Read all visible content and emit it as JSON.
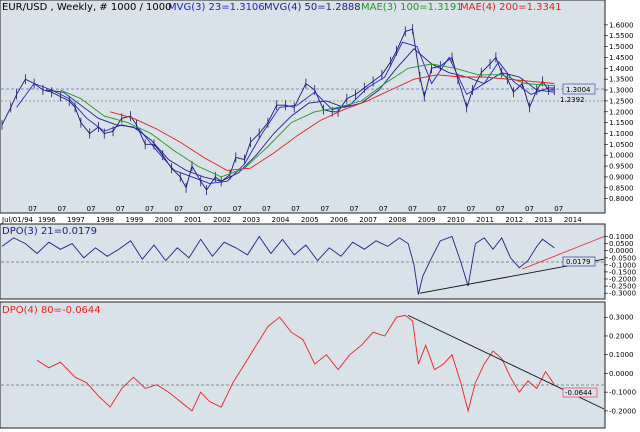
{
  "colors": {
    "page_bg": "#ffffff",
    "panel_bg": "#d9e1e9",
    "price": "#1a1a6e",
    "mvg3": "#2222cc",
    "mvg4": "#222288",
    "mae3": "#229922",
    "mae4": "#dd2222",
    "dpo3": "#22228a",
    "dpo4": "#ee2222",
    "trendline_black": "#111111",
    "trendline_red": "#ee3333",
    "level": "#333399"
  },
  "header": {
    "symbol": "EUR/USD , Weekly, # 1000 / 1000",
    "mvg3": "MVG(3) 23=1.3106",
    "mvg4": "MVG(4) 50=1.2888",
    "mae3": "MAE(3) 100=1.3191",
    "mae4": "MAE(4) 200=1.3341"
  },
  "price_marker": "1.3004",
  "level_label": "1.2392",
  "dpo3_title": "DPO(3) 21=0.0179",
  "dpo3_marker": "0.0179",
  "dpo4_title": "DPO(4) 80=-0.0644",
  "dpo4_marker": "-0.0644",
  "x_axis": {
    "start_label": "Jul/01/94",
    "month_label": "07",
    "years": [
      "1996",
      "1997",
      "1998",
      "1999",
      "2000",
      "2001",
      "2002",
      "2003",
      "2004",
      "2005",
      "2006",
      "2007",
      "2008",
      "2009",
      "2010",
      "2011",
      "2012",
      "2013",
      "2014"
    ]
  },
  "chart_data": [
    {
      "type": "line",
      "panel": "price",
      "x_range": [
        1994.5,
        2015.1
      ],
      "ylim": [
        0.78,
        1.65
      ],
      "y_ticks": [
        "1.6000",
        "1.5500",
        "1.5000",
        "1.4500",
        "1.4000",
        "1.3500",
        "1.3000",
        "1.2500",
        "1.2000",
        "1.1500",
        "1.1000",
        "1.0500",
        "1.0000",
        "0.9500",
        "0.9000",
        "0.8500",
        "0.8000"
      ],
      "series": [
        {
          "name": "EUR/USD",
          "style": "ohlc",
          "x": [
            1994.5,
            1994.8,
            1995.0,
            1995.3,
            1995.6,
            1995.9,
            1996.2,
            1996.5,
            1996.8,
            1997.0,
            1997.2,
            1997.5,
            1997.8,
            1998.0,
            1998.3,
            1998.6,
            1998.9,
            1999.1,
            1999.4,
            1999.7,
            2000.0,
            2000.3,
            2000.6,
            2000.8,
            2001.0,
            2001.3,
            2001.5,
            2001.8,
            2002.0,
            2002.3,
            2002.5,
            2002.8,
            2003.0,
            2003.3,
            2003.6,
            2003.9,
            2004.2,
            2004.5,
            2004.9,
            2005.2,
            2005.5,
            2005.8,
            2006.0,
            2006.3,
            2006.6,
            2006.9,
            2007.2,
            2007.5,
            2007.8,
            2008.0,
            2008.3,
            2008.55,
            2008.8,
            2008.95,
            2009.2,
            2009.5,
            2009.9,
            2010.1,
            2010.4,
            2010.6,
            2010.9,
            2011.2,
            2011.4,
            2011.6,
            2011.8,
            2012.0,
            2012.3,
            2012.55,
            2012.8,
            2013.0,
            2013.2,
            2013.4
          ],
          "y": [
            1.14,
            1.22,
            1.28,
            1.35,
            1.33,
            1.3,
            1.29,
            1.27,
            1.25,
            1.22,
            1.15,
            1.1,
            1.13,
            1.1,
            1.11,
            1.17,
            1.18,
            1.14,
            1.05,
            1.05,
            1.0,
            0.94,
            0.9,
            0.85,
            0.95,
            0.88,
            0.84,
            0.9,
            0.88,
            0.91,
            0.99,
            0.98,
            1.06,
            1.1,
            1.15,
            1.23,
            1.23,
            1.22,
            1.33,
            1.3,
            1.21,
            1.2,
            1.2,
            1.26,
            1.28,
            1.31,
            1.34,
            1.37,
            1.43,
            1.48,
            1.57,
            1.58,
            1.36,
            1.27,
            1.4,
            1.41,
            1.45,
            1.35,
            1.22,
            1.3,
            1.38,
            1.42,
            1.45,
            1.38,
            1.35,
            1.29,
            1.33,
            1.22,
            1.3,
            1.34,
            1.3,
            1.3
          ]
        },
        {
          "name": "MVG(3) 23",
          "x": [
            1995.0,
            1995.6,
            1996.2,
            1996.8,
            1997.4,
            1998.0,
            1998.6,
            1999.2,
            1999.8,
            2000.4,
            2001.0,
            2001.6,
            2002.2,
            2002.8,
            2003.4,
            2004.0,
            2004.6,
            2005.2,
            2005.8,
            2006.4,
            2007.0,
            2007.6,
            2008.2,
            2008.7,
            2009.2,
            2009.8,
            2010.4,
            2011.0,
            2011.5,
            2012.0,
            2012.6,
            2013.2,
            2013.4
          ],
          "y": [
            1.22,
            1.33,
            1.3,
            1.26,
            1.17,
            1.11,
            1.14,
            1.12,
            1.02,
            0.93,
            0.9,
            0.87,
            0.88,
            0.96,
            1.1,
            1.22,
            1.23,
            1.29,
            1.21,
            1.23,
            1.31,
            1.36,
            1.52,
            1.5,
            1.33,
            1.45,
            1.28,
            1.33,
            1.43,
            1.34,
            1.28,
            1.31,
            1.31
          ]
        },
        {
          "name": "MVG(4) 50",
          "x": [
            1996.0,
            1996.6,
            1997.2,
            1997.8,
            1998.4,
            1999.0,
            1999.6,
            2000.2,
            2000.8,
            2001.4,
            2002.0,
            2002.6,
            2003.2,
            2003.8,
            2004.4,
            2005.0,
            2005.6,
            2006.2,
            2006.8,
            2007.4,
            2008.0,
            2008.6,
            2009.2,
            2009.8,
            2010.4,
            2011.0,
            2011.6,
            2012.2,
            2012.8,
            2013.4
          ],
          "y": [
            1.3,
            1.29,
            1.23,
            1.17,
            1.14,
            1.13,
            1.07,
            0.98,
            0.93,
            0.9,
            0.88,
            0.92,
            1.0,
            1.1,
            1.18,
            1.24,
            1.25,
            1.22,
            1.24,
            1.3,
            1.4,
            1.49,
            1.42,
            1.38,
            1.36,
            1.33,
            1.38,
            1.36,
            1.3,
            1.29
          ]
        },
        {
          "name": "MAE(3) 100",
          "x": [
            1996.5,
            1997.2,
            1998.0,
            1998.8,
            1999.6,
            2000.4,
            2001.2,
            2002.0,
            2002.8,
            2003.6,
            2004.4,
            2005.2,
            2006.0,
            2006.8,
            2007.6,
            2008.4,
            2009.2,
            2010.0,
            2010.8,
            2011.6,
            2012.4,
            2013.4
          ],
          "y": [
            1.3,
            1.26,
            1.18,
            1.15,
            1.1,
            1.02,
            0.95,
            0.9,
            0.94,
            1.04,
            1.15,
            1.2,
            1.22,
            1.25,
            1.33,
            1.4,
            1.42,
            1.4,
            1.37,
            1.37,
            1.33,
            1.32
          ]
        },
        {
          "name": "MAE(4) 200",
          "x": [
            1998.2,
            1999.0,
            1999.8,
            2000.6,
            2001.4,
            2002.2,
            2003.0,
            2003.8,
            2004.6,
            2005.4,
            2006.2,
            2007.0,
            2007.8,
            2008.6,
            2009.4,
            2010.2,
            2011.0,
            2011.8,
            2012.6,
            2013.4
          ],
          "y": [
            1.2,
            1.17,
            1.12,
            1.06,
            0.99,
            0.93,
            0.94,
            1.01,
            1.09,
            1.16,
            1.21,
            1.25,
            1.3,
            1.35,
            1.37,
            1.36,
            1.36,
            1.35,
            1.34,
            1.33
          ]
        }
      ]
    },
    {
      "type": "line",
      "panel": "DPO(3)",
      "title": "DPO(3) 21=0.0179",
      "x_range": [
        1994.5,
        2015.1
      ],
      "ylim": [
        -0.32,
        0.16
      ],
      "y_ticks": [
        "0.1000",
        "0.0500",
        "0.0000",
        "-0.0500",
        "-0.1000",
        "-0.1500",
        "-0.2000",
        "-0.2500",
        "-0.3000"
      ],
      "series": [
        {
          "name": "DPO(3) 21",
          "x": [
            1994.5,
            1994.9,
            1995.3,
            1995.7,
            1996.1,
            1996.5,
            1996.9,
            1997.3,
            1997.7,
            1998.1,
            1998.5,
            1998.9,
            1999.3,
            1999.7,
            2000.1,
            2000.5,
            2000.9,
            2001.3,
            2001.7,
            2002.1,
            2002.5,
            2002.9,
            2003.3,
            2003.7,
            2004.1,
            2004.5,
            2004.9,
            2005.3,
            2005.7,
            2006.1,
            2006.5,
            2006.9,
            2007.3,
            2007.7,
            2008.1,
            2008.4,
            2008.6,
            2008.75,
            2008.9,
            2009.2,
            2009.5,
            2009.9,
            2010.2,
            2010.45,
            2010.7,
            2011.0,
            2011.3,
            2011.6,
            2011.9,
            2012.2,
            2012.5,
            2012.8,
            2013.0,
            2013.2,
            2013.4
          ],
          "y": [
            0.03,
            0.09,
            0.05,
            -0.02,
            0.06,
            0.01,
            0.05,
            -0.05,
            0.02,
            -0.04,
            0.01,
            0.07,
            -0.06,
            0.04,
            -0.07,
            0.02,
            -0.05,
            0.08,
            -0.04,
            0.06,
            0.02,
            -0.03,
            0.1,
            -0.02,
            0.08,
            -0.03,
            0.04,
            -0.07,
            0.02,
            -0.04,
            0.06,
            0.01,
            0.07,
            0.03,
            0.09,
            0.05,
            -0.1,
            -0.31,
            -0.18,
            -0.05,
            0.07,
            0.1,
            -0.08,
            -0.25,
            0.05,
            0.09,
            0.01,
            0.09,
            -0.05,
            -0.12,
            -0.07,
            0.03,
            0.08,
            0.05,
            0.02
          ]
        },
        {
          "name": "trend support black",
          "x": [
            2008.8,
            2015.1
          ],
          "y": [
            -0.3,
            -0.06
          ]
        },
        {
          "name": "trend support red",
          "x": [
            2012.3,
            2015.1
          ],
          "y": [
            -0.13,
            0.1
          ]
        }
      ]
    },
    {
      "type": "line",
      "panel": "DPO(4)",
      "title": "DPO(4) 80=-0.0644",
      "x_range": [
        1994.5,
        2015.1
      ],
      "ylim": [
        -0.27,
        0.36
      ],
      "y_ticks": [
        "0.3000",
        "0.2000",
        "0.1000",
        "0.0000",
        "-0.1000",
        "-0.2000"
      ],
      "series": [
        {
          "name": "DPO(4) 80",
          "x": [
            1995.7,
            1996.1,
            1996.5,
            1997.0,
            1997.4,
            1997.8,
            1998.2,
            1998.6,
            1999.0,
            1999.4,
            1999.8,
            2000.2,
            2000.6,
            2001.0,
            2001.3,
            2001.6,
            2002.0,
            2002.4,
            2002.8,
            2003.2,
            2003.6,
            2004.0,
            2004.4,
            2004.8,
            2005.2,
            2005.6,
            2006.0,
            2006.4,
            2006.8,
            2007.2,
            2007.6,
            2008.0,
            2008.3,
            2008.55,
            2008.75,
            2009.0,
            2009.3,
            2009.6,
            2009.9,
            2010.2,
            2010.45,
            2010.7,
            2011.0,
            2011.3,
            2011.6,
            2011.9,
            2012.2,
            2012.5,
            2012.8,
            2013.1,
            2013.4
          ],
          "y": [
            0.07,
            0.03,
            0.06,
            -0.02,
            -0.05,
            -0.12,
            -0.18,
            -0.08,
            -0.02,
            -0.08,
            -0.06,
            -0.1,
            -0.15,
            -0.2,
            -0.1,
            -0.15,
            -0.18,
            -0.05,
            0.05,
            0.15,
            0.25,
            0.3,
            0.22,
            0.18,
            0.05,
            0.1,
            0.02,
            0.1,
            0.15,
            0.22,
            0.2,
            0.3,
            0.31,
            0.28,
            0.05,
            0.15,
            0.02,
            0.05,
            0.1,
            -0.05,
            -0.2,
            -0.05,
            0.05,
            0.12,
            0.08,
            -0.02,
            -0.1,
            -0.04,
            -0.08,
            0.01,
            -0.06
          ]
        },
        {
          "name": "trend resistance black",
          "x": [
            2008.4,
            2015.1
          ],
          "y": [
            0.31,
            -0.19
          ]
        }
      ]
    }
  ]
}
